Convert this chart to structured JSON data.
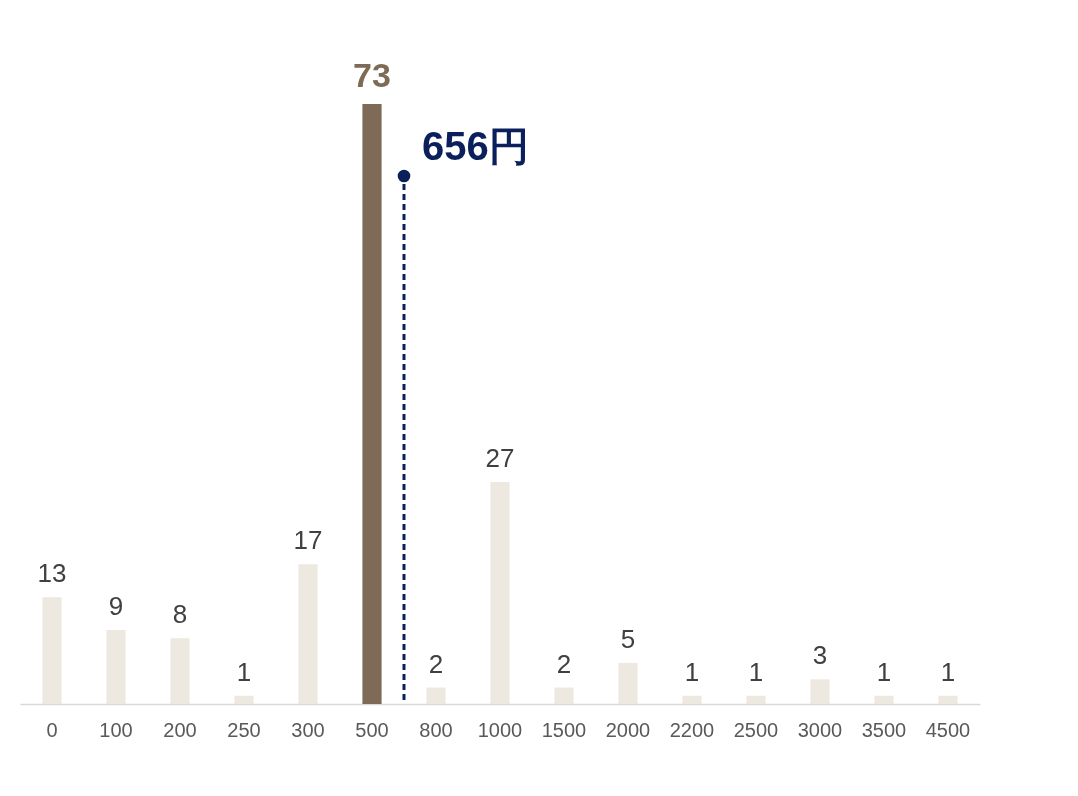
{
  "chart_data": {
    "type": "bar",
    "categories": [
      "0",
      "100",
      "200",
      "250",
      "300",
      "500",
      "800",
      "1000",
      "1500",
      "2000",
      "2200",
      "2500",
      "3000",
      "3500",
      "4500"
    ],
    "values": [
      13,
      9,
      8,
      1,
      17,
      73,
      2,
      27,
      2,
      5,
      1,
      1,
      3,
      1,
      1
    ],
    "colors": [
      "#ede9e1",
      "#ede9e1",
      "#ede9e1",
      "#ede9e1",
      "#ede9e1",
      "#7d6b57",
      "#ede9e1",
      "#ede9e1",
      "#ede9e1",
      "#ede9e1",
      "#ede9e1",
      "#ede9e1",
      "#ede9e1",
      "#ede9e1",
      "#ede9e1"
    ],
    "data_labels": true,
    "grid": false,
    "annotations": [
      "656円"
    ]
  }
}
